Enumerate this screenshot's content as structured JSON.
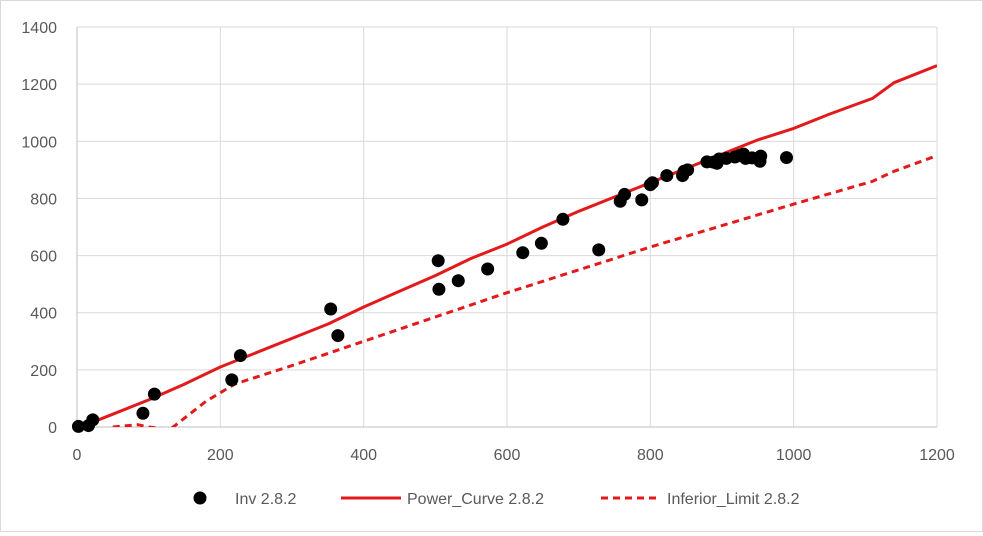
{
  "chart_data": {
    "type": "scatter",
    "title": "",
    "xlabel": "",
    "ylabel": "",
    "xlim": [
      0,
      1200
    ],
    "ylim": [
      0,
      1400
    ],
    "x_ticks": [
      0,
      200,
      400,
      600,
      800,
      1000,
      1200
    ],
    "y_ticks": [
      0,
      200,
      400,
      600,
      800,
      1000,
      1200,
      1400
    ],
    "grid": true,
    "legend_position": "bottom",
    "series": [
      {
        "name": "Inv 2.8.2",
        "kind": "scatter",
        "color": "#000000",
        "points": [
          [
            2,
            2
          ],
          [
            16,
            5
          ],
          [
            22,
            25
          ],
          [
            92,
            48
          ],
          [
            108,
            115
          ],
          [
            216,
            165
          ],
          [
            228,
            250
          ],
          [
            354,
            413
          ],
          [
            364,
            320
          ],
          [
            504,
            582
          ],
          [
            505,
            482
          ],
          [
            532,
            512
          ],
          [
            573,
            553
          ],
          [
            622,
            610
          ],
          [
            648,
            643
          ],
          [
            678,
            727
          ],
          [
            728,
            620
          ],
          [
            758,
            790
          ],
          [
            764,
            814
          ],
          [
            788,
            795
          ],
          [
            800,
            848
          ],
          [
            803,
            855
          ],
          [
            823,
            880
          ],
          [
            845,
            880
          ],
          [
            847,
            895
          ],
          [
            852,
            900
          ],
          [
            879,
            928
          ],
          [
            888,
            927
          ],
          [
            893,
            923
          ],
          [
            896,
            938
          ],
          [
            906,
            940
          ],
          [
            918,
            945
          ],
          [
            924,
            950
          ],
          [
            930,
            955
          ],
          [
            933,
            940
          ],
          [
            942,
            942
          ],
          [
            953,
            930
          ],
          [
            954,
            948
          ],
          [
            990,
            943
          ]
        ]
      },
      {
        "name": "Power_Curve 2.8.2",
        "kind": "line",
        "style": "solid",
        "color": "#e31a1c",
        "points": [
          [
            0,
            0
          ],
          [
            25,
            20
          ],
          [
            60,
            55
          ],
          [
            100,
            95
          ],
          [
            150,
            150
          ],
          [
            200,
            210
          ],
          [
            250,
            260
          ],
          [
            300,
            310
          ],
          [
            350,
            360
          ],
          [
            400,
            420
          ],
          [
            450,
            475
          ],
          [
            500,
            530
          ],
          [
            550,
            590
          ],
          [
            600,
            640
          ],
          [
            650,
            700
          ],
          [
            700,
            755
          ],
          [
            750,
            805
          ],
          [
            800,
            855
          ],
          [
            850,
            905
          ],
          [
            900,
            955
          ],
          [
            950,
            1005
          ],
          [
            1000,
            1045
          ],
          [
            1050,
            1095
          ],
          [
            1110,
            1150
          ],
          [
            1140,
            1205
          ],
          [
            1200,
            1265
          ]
        ]
      },
      {
        "name": "Inferior_Limit 2.8.2",
        "kind": "line",
        "style": "dashed",
        "color": "#e31a1c",
        "points": [
          [
            50,
            0
          ],
          [
            85,
            8
          ],
          [
            100,
            0
          ],
          [
            130,
            -8
          ],
          [
            180,
            90
          ],
          [
            220,
            150
          ],
          [
            300,
            215
          ],
          [
            400,
            300
          ],
          [
            500,
            385
          ],
          [
            600,
            470
          ],
          [
            700,
            550
          ],
          [
            800,
            630
          ],
          [
            900,
            705
          ],
          [
            1000,
            780
          ],
          [
            1110,
            860
          ],
          [
            1140,
            895
          ],
          [
            1200,
            950
          ]
        ]
      }
    ]
  }
}
